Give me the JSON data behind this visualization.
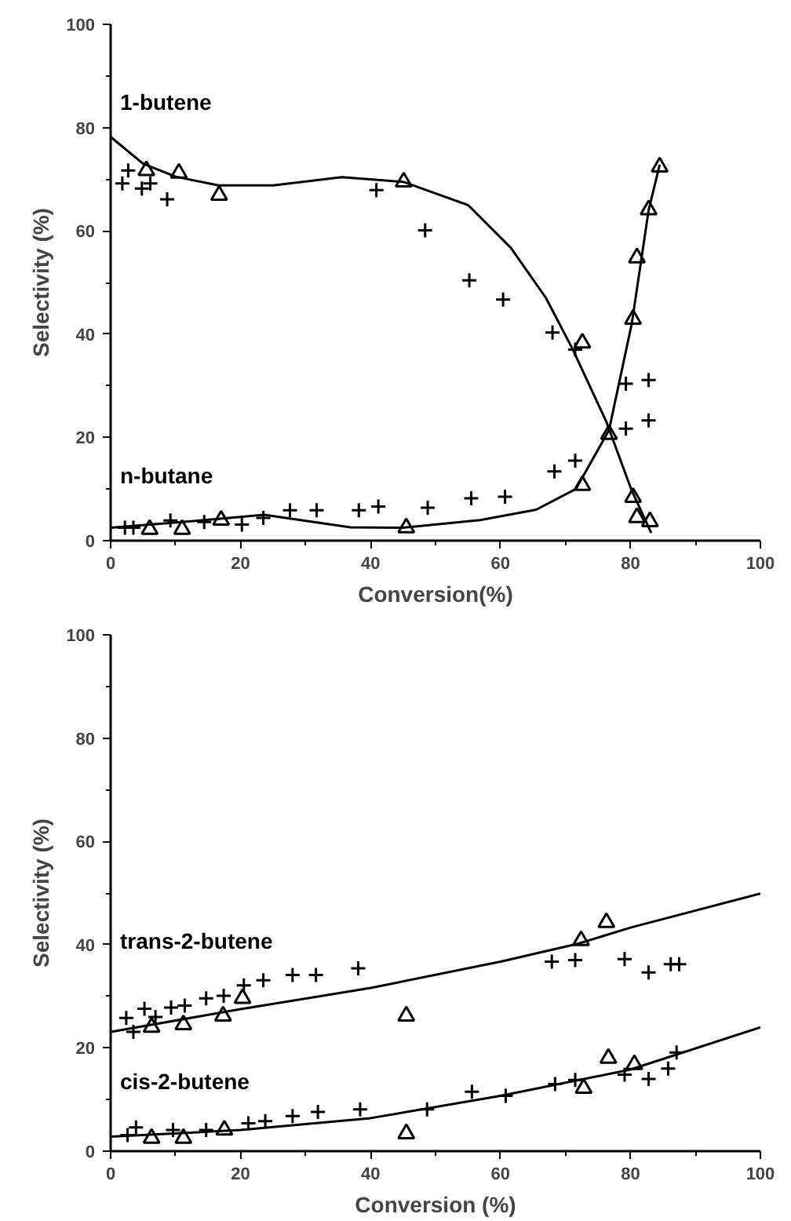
{
  "chart_data": [
    {
      "type": "scatter",
      "xlabel": "Conversion(%)",
      "ylabel": "Selectivity (%)",
      "xlim": [
        0,
        100
      ],
      "ylim": [
        0,
        100
      ],
      "xticks": [
        0,
        20,
        40,
        60,
        80,
        100
      ],
      "yticks": [
        0,
        20,
        40,
        60,
        80,
        100
      ],
      "grid": false,
      "series": [
        {
          "type": "line",
          "name": "1-butene",
          "color": "#000000",
          "marker": "none",
          "x": [
            0,
            5,
            10,
            16.6,
            25,
            35.6,
            45,
            55,
            61.6,
            67,
            71.1,
            76.3,
            80.2,
            83.2
          ],
          "values": [
            78.2,
            73,
            70.5,
            68.8,
            68.8,
            70.4,
            69.5,
            65,
            56.7,
            47,
            37.1,
            23,
            9.7,
            1.5
          ]
        },
        {
          "type": "line",
          "name": "n-butane",
          "color": "#000000",
          "marker": "none",
          "x": [
            0,
            16.6,
            23.6,
            36.9,
            45,
            56.9,
            65.5,
            71.6,
            76.7,
            80.2,
            82.8,
            84.5
          ],
          "values": [
            2.5,
            4.2,
            5,
            2.6,
            2.5,
            4,
            6,
            10,
            21.4,
            42,
            64,
            72.8
          ]
        },
        {
          "color": "#000000",
          "marker": "triangle",
          "x": [
            5.5,
            10.5,
            16.7,
            45.1,
            72.6,
            80.4,
            81.0,
            83.0,
            72.6,
            76.7,
            80.4,
            81.0,
            82.8,
            84.5,
            6,
            11,
            17,
            45.5
          ],
          "values": [
            71.7,
            71.2,
            66.9,
            69.5,
            38.3,
            8.4,
            4.5,
            3.7,
            10.7,
            20.6,
            42.9,
            54.8,
            64.1,
            72.4,
            2.2,
            2.2,
            4,
            2.5
          ]
        },
        {
          "color": "#000000",
          "marker": "cross",
          "x": [
            2.7,
            1.8,
            4.8,
            6.1,
            8.7,
            40.9,
            48.4,
            55.2,
            60.4,
            68.0,
            71.5,
            79.3,
            82.8,
            79.3,
            82.8,
            68.3,
            71.5,
            60.7,
            55.5,
            48.8,
            41.2,
            38.2,
            31.7,
            27.6,
            23.5,
            20.2,
            14.4,
            9.2,
            2.2,
            3.5
          ],
          "values": [
            71.7,
            69.2,
            68.2,
            69.2,
            66.1,
            67.9,
            60.1,
            50.4,
            46.7,
            40.3,
            37.0,
            30.4,
            31.1,
            21.7,
            23.3,
            13.4,
            15.5,
            8.5,
            8.2,
            6.4,
            6.6,
            5.9,
            5.9,
            5.9,
            4.4,
            3.1,
            3.6,
            3.9,
            2.5,
            2.5
          ]
        }
      ]
    },
    {
      "type": "scatter",
      "xlabel": "Conversion (%)",
      "ylabel": "Selectivity (%)",
      "xlim": [
        0,
        100
      ],
      "ylim": [
        0,
        100
      ],
      "xticks": [
        0,
        20,
        40,
        60,
        80,
        100
      ],
      "yticks": [
        0,
        20,
        40,
        60,
        80,
        100
      ],
      "grid": false,
      "series": [
        {
          "type": "line",
          "name": "trans-2-butene",
          "color": "#000000",
          "marker": "none",
          "x": [
            0,
            20,
            40,
            60,
            72,
            80,
            100
          ],
          "values": [
            23.1,
            27.5,
            31.6,
            36.7,
            40.2,
            43.3,
            49.9
          ]
        },
        {
          "type": "line",
          "name": "cis-2-butene",
          "color": "#000000",
          "marker": "none",
          "x": [
            0,
            20,
            40,
            60,
            80,
            100
          ],
          "values": [
            2.8,
            4.1,
            6.4,
            10.7,
            15.8,
            24.0
          ]
        },
        {
          "color": "#000000",
          "marker": "triangle",
          "x": [
            6.3,
            11.2,
            17.3,
            20.3,
            45.5,
            72.4,
            76.3,
            6.3,
            11.2,
            17.5,
            45.5,
            72.8,
            76.6,
            80.6
          ],
          "values": [
            24.0,
            24.5,
            26.2,
            29.6,
            26.2,
            40.8,
            44.3,
            2.5,
            2.5,
            4.1,
            3.4,
            12.2,
            18.0,
            16.8
          ]
        },
        {
          "color": "#000000",
          "marker": "cross",
          "x": [
            2.4,
            3.5,
            5.2,
            6.9,
            9.3,
            11.4,
            14.7,
            17.4,
            20.5,
            23.5,
            28.0,
            31.6,
            38.1,
            67.9,
            71.5,
            79.1,
            82.8,
            86.2,
            87.5,
            2.6,
            3.9,
            9.6,
            14.7,
            21.2,
            23.8,
            28.0,
            31.9,
            38.4,
            48.7,
            55.6,
            60.8,
            68.4,
            71.5,
            79.1,
            82.8,
            85.8,
            87.1
          ],
          "values": [
            25.8,
            23.1,
            27.6,
            26.0,
            27.8,
            28.2,
            29.6,
            30.1,
            32.1,
            33.1,
            34.1,
            34.1,
            35.4,
            36.7,
            37.0,
            37.2,
            34.6,
            36.2,
            36.2,
            3.1,
            4.6,
            4.1,
            4.1,
            5.4,
            5.8,
            6.8,
            7.6,
            8.1,
            8.1,
            11.5,
            10.7,
            13.0,
            13.8,
            14.8,
            14.0,
            16.0,
            19.1
          ]
        }
      ]
    }
  ]
}
